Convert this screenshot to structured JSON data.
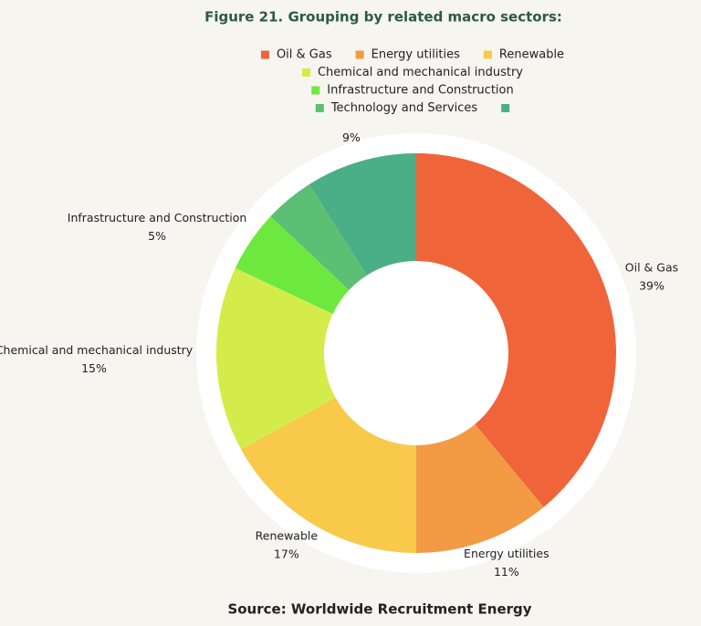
{
  "chart_data": {
    "type": "donut",
    "title": "Figure 21. Grouping by related macro sectors:",
    "source": "Source: Worldwide Recruitment Energy",
    "categories": [
      "Oil & Gas",
      "Energy utilities",
      "Renewable",
      "Chemical and mechanical industry",
      "Infrastructure and Construction",
      "Technology and Services",
      null
    ],
    "values": [
      39,
      11,
      17,
      15,
      5,
      4,
      9
    ],
    "value_labels": [
      "39%",
      "11%",
      "17%",
      "15%",
      "5%",
      null,
      "9%"
    ],
    "colors": [
      "#f0643a",
      "#f39a45",
      "#f8c94b",
      "#d4ec4a",
      "#6de83f",
      "#5cbf73",
      "#4aaf86"
    ]
  }
}
